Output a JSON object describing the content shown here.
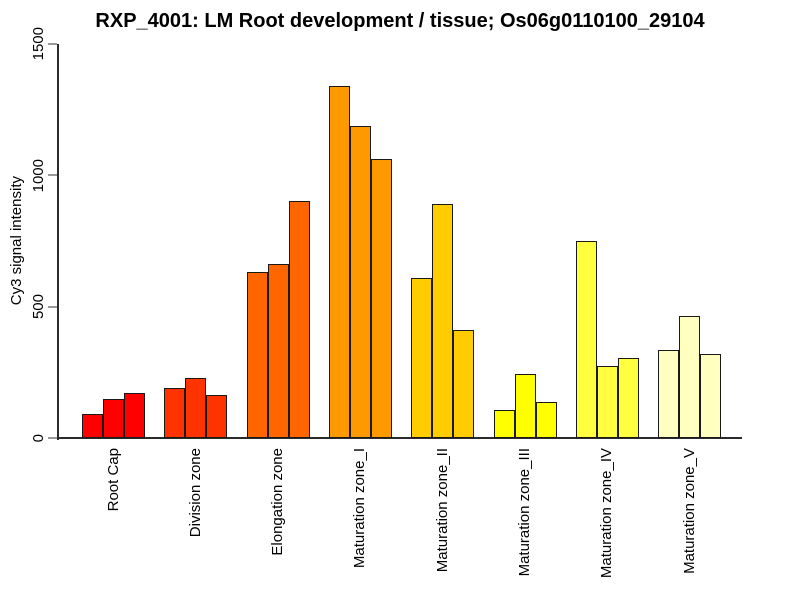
{
  "figure": {
    "title": "RXP_4001: LM Root development / tissue; Os06g0110100_29104"
  },
  "chart_data": {
    "type": "bar",
    "title": "RXP_4001: LM Root development / tissue; Os06g0110100_29104",
    "xlabel": "",
    "ylabel": "Cy3 signal intensity",
    "ylim": [
      0,
      1500
    ],
    "yticks": [
      0,
      500,
      1000,
      1500
    ],
    "grid": false,
    "legend": "none",
    "bars_per_group": 3,
    "categories": [
      "Root Cap",
      "Division zone",
      "Elongation zone",
      "Maturation zone_I",
      "Maturation zone_II",
      "Maturation zone_III",
      "Maturation zone_IV",
      "Maturation zone_V"
    ],
    "groups": [
      {
        "label": "Root Cap",
        "color": "#FF0000",
        "values": [
          90,
          150,
          170
        ]
      },
      {
        "label": "Division zone",
        "color": "#FF3300",
        "values": [
          190,
          230,
          165
        ]
      },
      {
        "label": "Elongation zone",
        "color": "#FF6600",
        "values": [
          630,
          660,
          900
        ]
      },
      {
        "label": "Maturation zone_I",
        "color": "#FF9900",
        "values": [
          1340,
          1185,
          1060
        ]
      },
      {
        "label": "Maturation zone_II",
        "color": "#FFCC00",
        "values": [
          610,
          890,
          410
        ]
      },
      {
        "label": "Maturation zone_III",
        "color": "#FFFF00",
        "values": [
          105,
          245,
          135
        ]
      },
      {
        "label": "Maturation zone_IV",
        "color": "#FFFF40",
        "values": [
          750,
          275,
          305
        ]
      },
      {
        "label": "Maturation zone_V",
        "color": "#FFFFBF",
        "values": [
          335,
          465,
          320
        ]
      }
    ],
    "colors": {
      "bar_border": "#1a1a1a",
      "axis_line": "#2b2b2b",
      "tick_mark": "#999999",
      "text": "#000000",
      "background": "#FFFFFF"
    }
  }
}
